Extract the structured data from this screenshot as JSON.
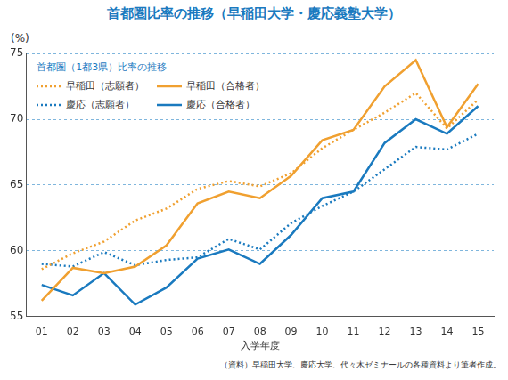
{
  "chart_data": {
    "type": "line",
    "title": "首都圏比率の推移（早稲田大学・慶応義塾大学）",
    "ylabel": "(%)",
    "xlabel": "入学年度",
    "annotations": [
      "首都圏（1都3県）比率の推移"
    ],
    "source": "（資料）早稲田大学、慶応大学、代々木ゼミナールの各種資料より筆者作成。",
    "categories": [
      "01",
      "02",
      "03",
      "04",
      "05",
      "06",
      "07",
      "08",
      "09",
      "10",
      "11",
      "12",
      "13",
      "14",
      "15"
    ],
    "series": [
      {
        "name": "早稲田（志願者）",
        "color": "#f0a030",
        "line_style": "dotted",
        "values": [
          58.6,
          59.8,
          60.7,
          62.3,
          63.2,
          64.7,
          65.3,
          64.9,
          65.9,
          67.8,
          69.2,
          70.5,
          72.0,
          69.3,
          71.5
        ]
      },
      {
        "name": "早稲田（合格者）",
        "color": "#f0a030",
        "line_style": "solid",
        "values": [
          56.2,
          58.7,
          58.3,
          58.8,
          60.4,
          63.6,
          64.5,
          64.0,
          65.7,
          68.4,
          69.2,
          72.5,
          74.5,
          69.4,
          72.7
        ]
      },
      {
        "name": "慶応（志願者）",
        "color": "#1a7abf",
        "line_style": "dotted",
        "values": [
          59.0,
          58.8,
          59.9,
          58.9,
          59.3,
          59.5,
          60.9,
          60.1,
          62.1,
          63.4,
          64.5,
          66.2,
          67.9,
          67.7,
          68.9
        ]
      },
      {
        "name": "慶応（合格者）",
        "color": "#1a7abf",
        "line_style": "solid",
        "values": [
          57.4,
          56.6,
          58.3,
          55.9,
          57.2,
          59.4,
          60.1,
          59.0,
          61.2,
          64.0,
          64.5,
          68.2,
          70.0,
          68.9,
          71.0
        ]
      }
    ],
    "ylim": [
      55,
      75
    ],
    "yticks": [
      55,
      60,
      65,
      70,
      75
    ],
    "grid": true,
    "legend": "top-left"
  }
}
